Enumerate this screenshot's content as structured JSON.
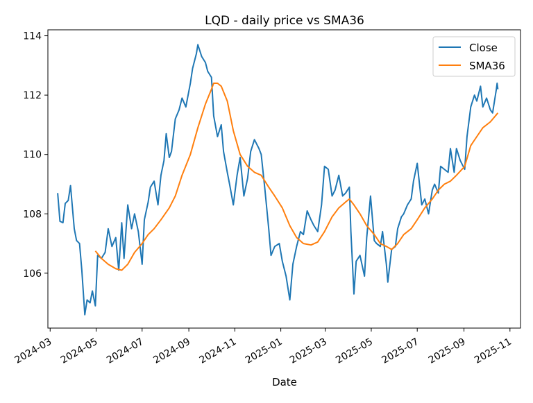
{
  "chart_data": {
    "type": "line",
    "title": "LQD - daily price vs SMA36",
    "xlabel": "Date",
    "ylabel": "",
    "xlim": [
      "2024-02-27",
      "2025-11-15"
    ],
    "ylim": [
      104.15,
      114.2
    ],
    "x_ticks": [
      "2024-03",
      "2024-05",
      "2024-07",
      "2024-09",
      "2024-11",
      "2025-01",
      "2025-03",
      "2025-05",
      "2025-07",
      "2025-09",
      "2025-11"
    ],
    "y_ticks": [
      106,
      108,
      110,
      112,
      114
    ],
    "legend": {
      "placement": "top-right"
    },
    "grid": false,
    "series": [
      {
        "name": "Close",
        "color": "#1f77b4",
        "points": [
          [
            "2024-03-11",
            108.7
          ],
          [
            "2024-03-14",
            107.75
          ],
          [
            "2024-03-18",
            107.7
          ],
          [
            "2024-03-21",
            108.35
          ],
          [
            "2024-03-25",
            108.45
          ],
          [
            "2024-03-28",
            108.95
          ],
          [
            "2024-04-02",
            107.5
          ],
          [
            "2024-04-05",
            107.1
          ],
          [
            "2024-04-09",
            107.0
          ],
          [
            "2024-04-12",
            106.1
          ],
          [
            "2024-04-16",
            104.6
          ],
          [
            "2024-04-19",
            105.1
          ],
          [
            "2024-04-23",
            105.0
          ],
          [
            "2024-04-26",
            105.4
          ],
          [
            "2024-04-30",
            104.9
          ],
          [
            "2024-05-03",
            106.6
          ],
          [
            "2024-05-08",
            106.5
          ],
          [
            "2024-05-13",
            106.7
          ],
          [
            "2024-05-17",
            107.5
          ],
          [
            "2024-05-22",
            106.9
          ],
          [
            "2024-05-27",
            107.2
          ],
          [
            "2024-05-31",
            106.1
          ],
          [
            "2024-06-04",
            107.7
          ],
          [
            "2024-06-07",
            106.5
          ],
          [
            "2024-06-12",
            108.3
          ],
          [
            "2024-06-17",
            107.5
          ],
          [
            "2024-06-21",
            108.0
          ],
          [
            "2024-06-26",
            107.4
          ],
          [
            "2024-07-01",
            106.3
          ],
          [
            "2024-07-04",
            107.8
          ],
          [
            "2024-07-09",
            108.4
          ],
          [
            "2024-07-12",
            108.9
          ],
          [
            "2024-07-17",
            109.1
          ],
          [
            "2024-07-22",
            108.3
          ],
          [
            "2024-07-26",
            109.3
          ],
          [
            "2024-07-30",
            109.8
          ],
          [
            "2024-08-02",
            110.7
          ],
          [
            "2024-08-06",
            109.9
          ],
          [
            "2024-08-09",
            110.1
          ],
          [
            "2024-08-14",
            111.2
          ],
          [
            "2024-08-19",
            111.5
          ],
          [
            "2024-08-23",
            111.9
          ],
          [
            "2024-08-28",
            111.6
          ],
          [
            "2024-09-03",
            112.4
          ],
          [
            "2024-09-06",
            112.9
          ],
          [
            "2024-09-11",
            113.4
          ],
          [
            "2024-09-13",
            113.7
          ],
          [
            "2024-09-18",
            113.3
          ],
          [
            "2024-09-23",
            113.1
          ],
          [
            "2024-09-26",
            112.8
          ],
          [
            "2024-10-01",
            112.6
          ],
          [
            "2024-10-04",
            111.3
          ],
          [
            "2024-10-09",
            110.6
          ],
          [
            "2024-10-14",
            111.0
          ],
          [
            "2024-10-17",
            110.1
          ],
          [
            "2024-10-22",
            109.4
          ],
          [
            "2024-10-25",
            109.0
          ],
          [
            "2024-10-30",
            108.3
          ],
          [
            "2024-11-04",
            109.3
          ],
          [
            "2024-11-08",
            109.9
          ],
          [
            "2024-11-13",
            108.6
          ],
          [
            "2024-11-18",
            109.2
          ],
          [
            "2024-11-22",
            110.1
          ],
          [
            "2024-11-27",
            110.5
          ],
          [
            "2024-12-03",
            110.2
          ],
          [
            "2024-12-06",
            110.0
          ],
          [
            "2024-12-11",
            108.8
          ],
          [
            "2024-12-16",
            107.5
          ],
          [
            "2024-12-19",
            106.6
          ],
          [
            "2024-12-24",
            106.9
          ],
          [
            "2024-12-30",
            107.0
          ],
          [
            "2025-01-03",
            106.4
          ],
          [
            "2025-01-08",
            105.9
          ],
          [
            "2025-01-13",
            105.1
          ],
          [
            "2025-01-17",
            106.3
          ],
          [
            "2025-01-22",
            106.9
          ],
          [
            "2025-01-27",
            107.4
          ],
          [
            "2025-01-31",
            107.3
          ],
          [
            "2025-02-05",
            108.1
          ],
          [
            "2025-02-10",
            107.8
          ],
          [
            "2025-02-14",
            107.6
          ],
          [
            "2025-02-19",
            107.4
          ],
          [
            "2025-02-24",
            108.3
          ],
          [
            "2025-02-28",
            109.6
          ],
          [
            "2025-03-05",
            109.5
          ],
          [
            "2025-03-10",
            108.6
          ],
          [
            "2025-03-14",
            108.8
          ],
          [
            "2025-03-19",
            109.3
          ],
          [
            "2025-03-24",
            108.6
          ],
          [
            "2025-03-28",
            108.7
          ],
          [
            "2025-04-02",
            108.9
          ],
          [
            "2025-04-04",
            107.4
          ],
          [
            "2025-04-08",
            105.3
          ],
          [
            "2025-04-11",
            106.4
          ],
          [
            "2025-04-16",
            106.6
          ],
          [
            "2025-04-22",
            105.9
          ],
          [
            "2025-04-25",
            107.2
          ],
          [
            "2025-04-30",
            108.6
          ],
          [
            "2025-05-05",
            107.1
          ],
          [
            "2025-05-08",
            107.0
          ],
          [
            "2025-05-13",
            106.9
          ],
          [
            "2025-05-16",
            107.4
          ],
          [
            "2025-05-21",
            106.3
          ],
          [
            "2025-05-23",
            105.7
          ],
          [
            "2025-05-28",
            106.8
          ],
          [
            "2025-06-02",
            106.9
          ],
          [
            "2025-06-05",
            107.5
          ],
          [
            "2025-06-10",
            107.9
          ],
          [
            "2025-06-13",
            108.0
          ],
          [
            "2025-06-18",
            108.3
          ],
          [
            "2025-06-23",
            108.5
          ],
          [
            "2025-06-26",
            109.1
          ],
          [
            "2025-07-01",
            109.7
          ],
          [
            "2025-07-07",
            108.3
          ],
          [
            "2025-07-11",
            108.5
          ],
          [
            "2025-07-16",
            108.0
          ],
          [
            "2025-07-21",
            108.8
          ],
          [
            "2025-07-24",
            109.0
          ],
          [
            "2025-07-29",
            108.7
          ],
          [
            "2025-08-01",
            109.6
          ],
          [
            "2025-08-06",
            109.5
          ],
          [
            "2025-08-11",
            109.4
          ],
          [
            "2025-08-14",
            110.2
          ],
          [
            "2025-08-19",
            109.4
          ],
          [
            "2025-08-22",
            110.2
          ],
          [
            "2025-08-27",
            109.8
          ],
          [
            "2025-09-02",
            109.5
          ],
          [
            "2025-09-05",
            110.6
          ],
          [
            "2025-09-10",
            111.6
          ],
          [
            "2025-09-15",
            112.0
          ],
          [
            "2025-09-18",
            111.8
          ],
          [
            "2025-09-23",
            112.3
          ],
          [
            "2025-09-26",
            111.6
          ],
          [
            "2025-10-01",
            111.9
          ],
          [
            "2025-10-06",
            111.5
          ],
          [
            "2025-10-09",
            111.4
          ],
          [
            "2025-10-14",
            112.2
          ],
          [
            "2025-10-15",
            112.4
          ],
          [
            "2025-10-16",
            112.2
          ]
        ]
      },
      {
        "name": "SMA36",
        "color": "#ff7f0e",
        "points": [
          [
            "2024-04-30",
            106.75
          ],
          [
            "2024-05-08",
            106.5
          ],
          [
            "2024-05-17",
            106.3
          ],
          [
            "2024-05-27",
            106.15
          ],
          [
            "2024-06-04",
            106.1
          ],
          [
            "2024-06-12",
            106.3
          ],
          [
            "2024-06-21",
            106.7
          ],
          [
            "2024-07-01",
            107.0
          ],
          [
            "2024-07-09",
            107.3
          ],
          [
            "2024-07-17",
            107.5
          ],
          [
            "2024-07-26",
            107.8
          ],
          [
            "2024-08-06",
            108.2
          ],
          [
            "2024-08-14",
            108.6
          ],
          [
            "2024-08-23",
            109.3
          ],
          [
            "2024-09-03",
            110.0
          ],
          [
            "2024-09-13",
            110.9
          ],
          [
            "2024-09-23",
            111.7
          ],
          [
            "2024-10-01",
            112.2
          ],
          [
            "2024-10-04",
            112.4
          ],
          [
            "2024-10-09",
            112.4
          ],
          [
            "2024-10-14",
            112.3
          ],
          [
            "2024-10-22",
            111.8
          ],
          [
            "2024-10-30",
            110.8
          ],
          [
            "2024-11-08",
            110.0
          ],
          [
            "2024-11-18",
            109.6
          ],
          [
            "2024-11-27",
            109.4
          ],
          [
            "2024-12-06",
            109.3
          ],
          [
            "2024-12-16",
            108.9
          ],
          [
            "2024-12-24",
            108.6
          ],
          [
            "2025-01-03",
            108.2
          ],
          [
            "2025-01-13",
            107.6
          ],
          [
            "2025-01-22",
            107.2
          ],
          [
            "2025-01-31",
            107.0
          ],
          [
            "2025-02-10",
            106.95
          ],
          [
            "2025-02-19",
            107.05
          ],
          [
            "2025-02-28",
            107.4
          ],
          [
            "2025-03-10",
            107.9
          ],
          [
            "2025-03-19",
            108.2
          ],
          [
            "2025-03-28",
            108.4
          ],
          [
            "2025-04-02",
            108.5
          ],
          [
            "2025-04-08",
            108.3
          ],
          [
            "2025-04-16",
            108.0
          ],
          [
            "2025-04-25",
            107.6
          ],
          [
            "2025-05-05",
            107.3
          ],
          [
            "2025-05-13",
            107.0
          ],
          [
            "2025-05-21",
            106.9
          ],
          [
            "2025-05-28",
            106.8
          ],
          [
            "2025-06-05",
            107.0
          ],
          [
            "2025-06-13",
            107.3
          ],
          [
            "2025-06-23",
            107.5
          ],
          [
            "2025-07-01",
            107.8
          ],
          [
            "2025-07-11",
            108.2
          ],
          [
            "2025-07-21",
            108.5
          ],
          [
            "2025-07-29",
            108.8
          ],
          [
            "2025-08-06",
            109.0
          ],
          [
            "2025-08-14",
            109.1
          ],
          [
            "2025-08-22",
            109.3
          ],
          [
            "2025-09-02",
            109.6
          ],
          [
            "2025-09-10",
            110.3
          ],
          [
            "2025-09-18",
            110.6
          ],
          [
            "2025-09-26",
            110.9
          ],
          [
            "2025-10-06",
            111.1
          ],
          [
            "2025-10-16",
            111.4
          ]
        ]
      }
    ]
  }
}
